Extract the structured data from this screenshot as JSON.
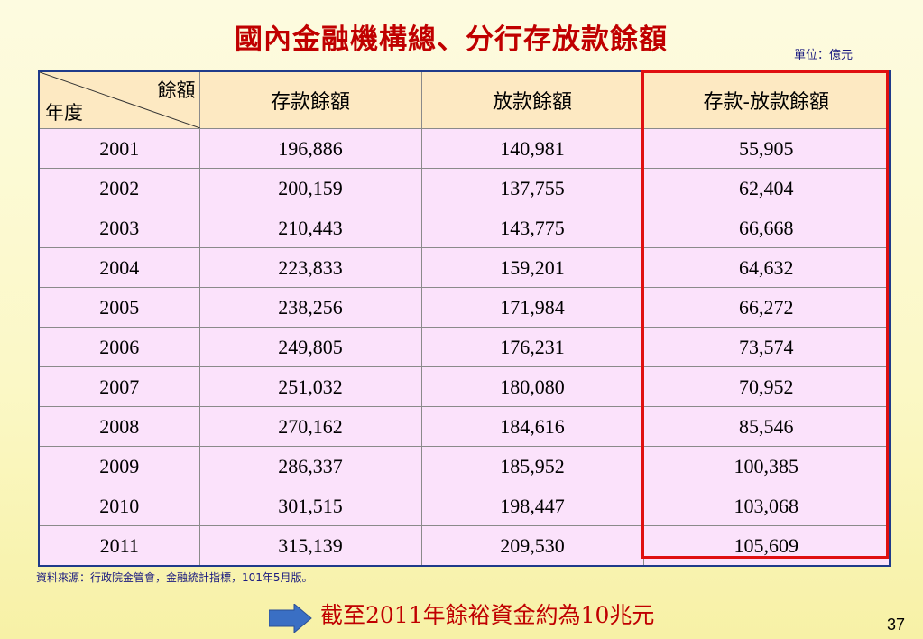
{
  "title": "國內金融機構總、分行存放款餘額",
  "unit": "單位：億元",
  "table": {
    "corner_top": "餘額",
    "corner_bottom": "年度",
    "headers": [
      "存款餘額",
      "放款餘額",
      "存款-放款餘額"
    ],
    "rows": [
      {
        "year": "2001",
        "deposits": "196,886",
        "loans": "140,981",
        "diff": "55,905"
      },
      {
        "year": "2002",
        "deposits": "200,159",
        "loans": "137,755",
        "diff": "62,404"
      },
      {
        "year": "2003",
        "deposits": "210,443",
        "loans": "143,775",
        "diff": "66,668"
      },
      {
        "year": "2004",
        "deposits": "223,833",
        "loans": "159,201",
        "diff": "64,632"
      },
      {
        "year": "2005",
        "deposits": "238,256",
        "loans": "171,984",
        "diff": "66,272"
      },
      {
        "year": "2006",
        "deposits": "249,805",
        "loans": "176,231",
        "diff": "73,574"
      },
      {
        "year": "2007",
        "deposits": "251,032",
        "loans": "180,080",
        "diff": "70,952"
      },
      {
        "year": "2008",
        "deposits": "270,162",
        "loans": "184,616",
        "diff": "85,546"
      },
      {
        "year": "2009",
        "deposits": "286,337",
        "loans": "185,952",
        "diff": "100,385"
      },
      {
        "year": "2010",
        "deposits": "301,515",
        "loans": "198,447",
        "diff": "103,068"
      },
      {
        "year": "2011",
        "deposits": "315,139",
        "loans": "209,530",
        "diff": "105,609"
      }
    ]
  },
  "source": "資料來源：行政院金管會，金融統計指標，101年5月版。",
  "conclusion": "截至2011年餘裕資金約為10兆元",
  "page_number": "37",
  "colors": {
    "title": "#c00000",
    "header_bg": "#fde9c2",
    "cell_bg": "#fbe2fb",
    "highlight_border": "#e01010",
    "arrow": "#3a6fc4"
  }
}
